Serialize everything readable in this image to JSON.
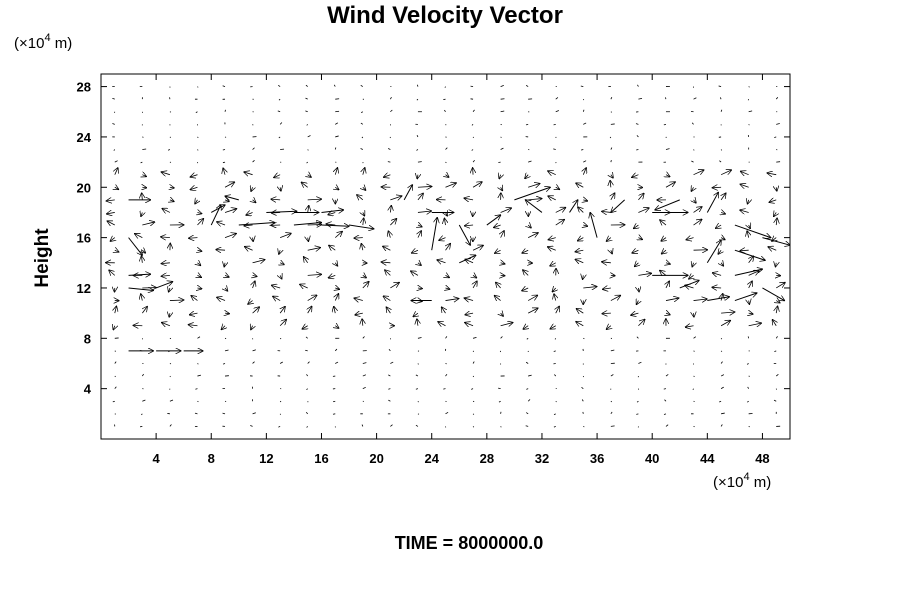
{
  "chart_data": {
    "type": "vector-field",
    "title": "Wind Velocity Vector",
    "xlabel": "",
    "ylabel": "Height",
    "x_units": "(×10",
    "y_units": "(×10",
    "units_exponent": "4",
    "units_suffix": " m)",
    "xlim": [
      0,
      50
    ],
    "ylim": [
      0,
      29
    ],
    "xticks": [
      4,
      8,
      12,
      16,
      20,
      24,
      28,
      32,
      36,
      40,
      44,
      48
    ],
    "yticks": [
      4,
      8,
      12,
      16,
      20,
      24,
      28
    ],
    "xtick_labels": [
      "4",
      "8",
      "12",
      "16",
      "20",
      "24",
      "28",
      "32",
      "36",
      "40",
      "44",
      "48"
    ],
    "ytick_labels": [
      "4",
      "8",
      "12",
      "16",
      "20",
      "24",
      "28"
    ],
    "grid": false,
    "footer": "TIME = 8000000.0",
    "vectors": [
      {
        "x": 2,
        "y": 19,
        "u": 1.6,
        "v": 0.0
      },
      {
        "x": 2,
        "y": 16,
        "u": 1.0,
        "v": -1.4
      },
      {
        "x": 2,
        "y": 13,
        "u": 1.6,
        "v": 0.1
      },
      {
        "x": 2,
        "y": 12,
        "u": 1.8,
        "v": -0.2
      },
      {
        "x": 2,
        "y": 7,
        "u": 1.8,
        "v": 0.0
      },
      {
        "x": 4,
        "y": 7,
        "u": 1.8,
        "v": 0.0
      },
      {
        "x": 4,
        "y": 12,
        "u": 1.2,
        "v": 0.5
      },
      {
        "x": 6,
        "y": 7,
        "u": 1.4,
        "v": 0.0
      },
      {
        "x": 8,
        "y": 18,
        "u": 1.0,
        "v": 0.6
      },
      {
        "x": 8,
        "y": 17,
        "u": 0.7,
        "v": 1.6
      },
      {
        "x": 10,
        "y": 17,
        "u": 2.6,
        "v": 0.2
      },
      {
        "x": 10,
        "y": 19,
        "u": -1.0,
        "v": 0.3
      },
      {
        "x": 12,
        "y": 18,
        "u": 2.2,
        "v": 0.1
      },
      {
        "x": 14,
        "y": 17,
        "u": 2.0,
        "v": 0.2
      },
      {
        "x": 14,
        "y": 18,
        "u": 1.8,
        "v": 0.0
      },
      {
        "x": 16,
        "y": 17,
        "u": 2.0,
        "v": -0.1
      },
      {
        "x": 16,
        "y": 18,
        "u": 1.6,
        "v": 0.2
      },
      {
        "x": 18,
        "y": 17,
        "u": 1.8,
        "v": -0.3
      },
      {
        "x": 22,
        "y": 19,
        "u": 0.6,
        "v": 1.2
      },
      {
        "x": 24,
        "y": 15,
        "u": 0.4,
        "v": 2.6
      },
      {
        "x": 24,
        "y": 18,
        "u": 1.6,
        "v": 0.0
      },
      {
        "x": 24,
        "y": 11,
        "u": -1.5,
        "v": 0.0
      },
      {
        "x": 26,
        "y": 17,
        "u": 0.8,
        "v": -1.6
      },
      {
        "x": 26,
        "y": 14,
        "u": 1.2,
        "v": 0.6
      },
      {
        "x": 28,
        "y": 17,
        "u": 1.0,
        "v": 0.8
      },
      {
        "x": 30,
        "y": 19,
        "u": 2.6,
        "v": 1.0
      },
      {
        "x": 32,
        "y": 18,
        "u": -1.2,
        "v": 1.0
      },
      {
        "x": 34,
        "y": 18,
        "u": 0.6,
        "v": 1.0
      },
      {
        "x": 36,
        "y": 16,
        "u": -0.5,
        "v": 2.0
      },
      {
        "x": 38,
        "y": 19,
        "u": -1.0,
        "v": -1.0
      },
      {
        "x": 40,
        "y": 18,
        "u": 2.6,
        "v": 0.0
      },
      {
        "x": 42,
        "y": 19,
        "u": -1.8,
        "v": -0.8
      },
      {
        "x": 44,
        "y": 18,
        "u": 0.8,
        "v": 1.6
      },
      {
        "x": 44,
        "y": 14,
        "u": 1.0,
        "v": 1.8
      },
      {
        "x": 46,
        "y": 17,
        "u": 2.6,
        "v": -1.0
      },
      {
        "x": 46,
        "y": 15,
        "u": 2.2,
        "v": -0.8
      },
      {
        "x": 46,
        "y": 13,
        "u": 2.0,
        "v": 0.5
      },
      {
        "x": 48,
        "y": 12,
        "u": 1.6,
        "v": -1.0
      },
      {
        "x": 48,
        "y": 16,
        "u": 2.0,
        "v": -0.6
      },
      {
        "x": 40,
        "y": 13,
        "u": 2.6,
        "v": 0.0
      },
      {
        "x": 42,
        "y": 12,
        "u": 1.4,
        "v": 0.6
      },
      {
        "x": 44,
        "y": 11,
        "u": 1.6,
        "v": 0.3
      },
      {
        "x": 46,
        "y": 11,
        "u": 1.6,
        "v": 0.6
      }
    ]
  }
}
